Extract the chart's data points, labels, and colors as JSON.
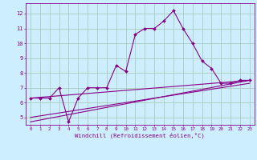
{
  "xlabel": "Windchill (Refroidissement éolien,°C)",
  "bg_color": "#cceeff",
  "grid_color": "#aaccbb",
  "line_color": "#880088",
  "xlim": [
    -0.5,
    23.5
  ],
  "ylim": [
    4.5,
    12.7
  ],
  "yticks": [
    5,
    6,
    7,
    8,
    9,
    10,
    11,
    12
  ],
  "xticks": [
    0,
    1,
    2,
    3,
    4,
    5,
    6,
    7,
    8,
    9,
    10,
    11,
    12,
    13,
    14,
    15,
    16,
    17,
    18,
    19,
    20,
    21,
    22,
    23
  ],
  "series1_x": [
    0,
    1,
    2,
    3,
    4,
    5,
    6,
    7,
    8,
    9,
    10,
    11,
    12,
    13,
    14,
    15,
    16,
    17,
    18,
    19,
    20,
    21,
    22,
    23
  ],
  "series1_y": [
    6.3,
    6.3,
    6.3,
    7.0,
    4.7,
    6.3,
    7.0,
    7.0,
    7.0,
    8.5,
    8.1,
    10.6,
    11.0,
    11.0,
    11.5,
    12.2,
    11.0,
    10.0,
    8.8,
    8.3,
    7.3,
    7.3,
    7.5,
    7.5
  ],
  "series2_x": [
    0,
    23
  ],
  "series2_y": [
    6.3,
    7.5
  ],
  "series3_x": [
    0,
    23
  ],
  "series3_y": [
    5.0,
    7.3
  ],
  "series4_x": [
    0,
    23
  ],
  "series4_y": [
    4.7,
    7.5
  ]
}
